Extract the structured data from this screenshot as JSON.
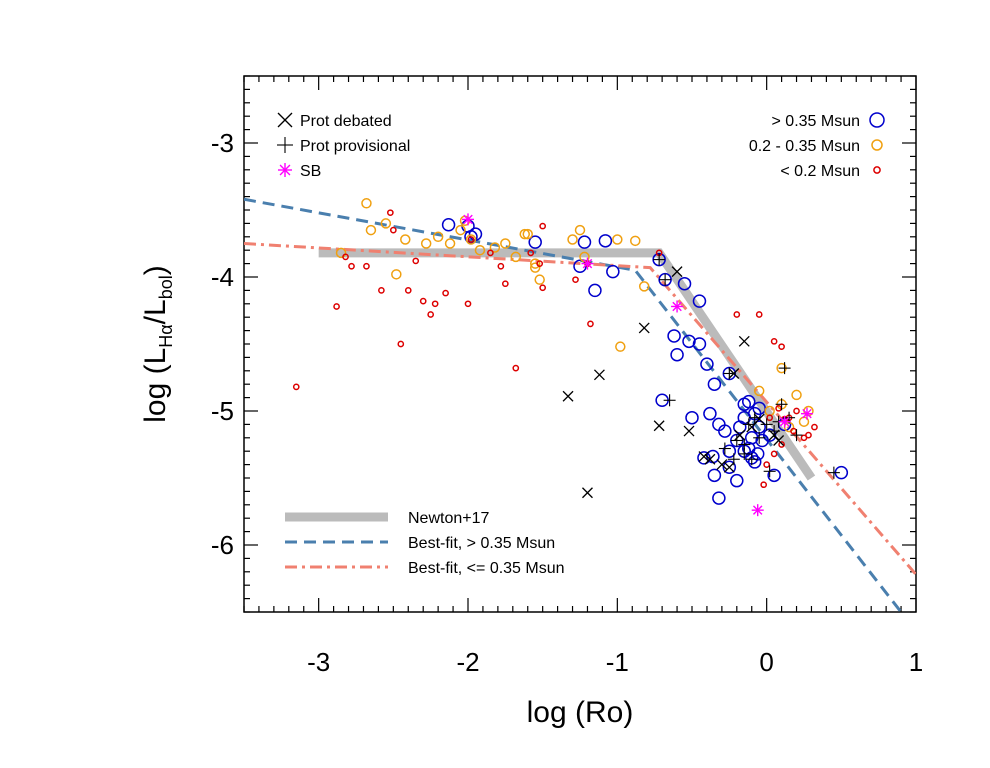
{
  "chart_data": {
    "type": "scatter",
    "title": "",
    "xlabel": "log (Ro)",
    "ylabel": {
      "prefix": "log (L",
      "sub1": "Hα",
      "mid": "/L",
      "sub2": "bol",
      "suffix": ")"
    },
    "xlim": [
      -3.5,
      1.0
    ],
    "ylim": [
      -6.5,
      -2.5
    ],
    "x_ticks": [
      "-3",
      "-2",
      "-1",
      "0",
      "1"
    ],
    "x_tick_values": [
      -3,
      -2,
      -1,
      0,
      1
    ],
    "y_ticks": [
      "-3",
      "-4",
      "-5",
      "-6"
    ],
    "y_tick_values": [
      -3,
      -4,
      -5,
      -6
    ],
    "grid": false,
    "colors": {
      "high": "#0000cc",
      "mid": "#f0a010",
      "low": "#dd0000",
      "sb": "#ff00ff",
      "newton": "#bbbbbb",
      "fit_high": "#4a7fae",
      "fit_low": "#f08070"
    },
    "legend_markers": {
      "placement": "top",
      "items": [
        {
          "label": "Prot debated",
          "symbol": "x"
        },
        {
          "label": "Prot provisional",
          "symbol": "+"
        },
        {
          "label": "SB",
          "symbol": "*"
        }
      ]
    },
    "legend_mass": {
      "placement": "top-right",
      "items": [
        {
          "label": "> 0.35 Msun",
          "group": "high"
        },
        {
          "label": "0.2 - 0.35 Msun",
          "group": "mid"
        },
        {
          "label": "< 0.2 Msun",
          "group": "low"
        }
      ]
    },
    "legend_lines": {
      "placement": "bottom-left",
      "items": [
        {
          "label": "Newton+17",
          "line": "newton"
        },
        {
          "label": "Best-fit, > 0.35 Msun",
          "line": "fit_high"
        },
        {
          "label": "Best-fit, <= 0.35 Msun",
          "line": "fit_low"
        }
      ]
    },
    "lines": {
      "newton": [
        [
          -3.0,
          -3.82
        ],
        [
          -0.72,
          -3.82
        ],
        [
          0.3,
          -5.5
        ]
      ],
      "fit_high": [
        [
          -3.5,
          -3.42
        ],
        [
          -0.88,
          -3.95
        ],
        [
          0.9,
          -6.5
        ]
      ],
      "fit_low": [
        [
          -3.5,
          -3.75
        ],
        [
          -0.78,
          -3.93
        ],
        [
          1.0,
          -6.22
        ]
      ]
    },
    "series": [
      {
        "group": "high",
        "points": [
          [
            -2.0,
            -3.62
          ],
          [
            -1.98,
            -3.7
          ],
          [
            -2.13,
            -3.61
          ],
          [
            -1.95,
            -3.68
          ],
          [
            -1.55,
            -3.74
          ],
          [
            -1.22,
            -3.74
          ],
          [
            -1.08,
            -3.73
          ],
          [
            -1.25,
            -3.92
          ],
          [
            -1.03,
            -3.96
          ],
          [
            -1.15,
            -4.1
          ],
          [
            -0.72,
            -3.87
          ],
          [
            -0.68,
            -4.02
          ],
          [
            -0.55,
            -4.05
          ],
          [
            -0.45,
            -4.18
          ],
          [
            -0.52,
            -4.48
          ],
          [
            -0.62,
            -4.44
          ],
          [
            -0.45,
            -4.5
          ],
          [
            -0.4,
            -4.65
          ],
          [
            -0.25,
            -4.72
          ],
          [
            -0.35,
            -4.8
          ],
          [
            -0.15,
            -4.95
          ],
          [
            -0.7,
            -4.92
          ],
          [
            -0.5,
            -5.05
          ],
          [
            -0.38,
            -5.02
          ],
          [
            -0.32,
            -5.1
          ],
          [
            -0.15,
            -5.05
          ],
          [
            -0.08,
            -5.02
          ],
          [
            -0.05,
            -5.12
          ],
          [
            -0.2,
            -5.22
          ],
          [
            -0.12,
            -5.28
          ],
          [
            -0.06,
            -5.32
          ],
          [
            -0.08,
            -5.38
          ],
          [
            -0.25,
            -5.42
          ],
          [
            -0.35,
            -5.48
          ],
          [
            -0.2,
            -5.52
          ],
          [
            -0.32,
            -5.65
          ],
          [
            0.05,
            -5.48
          ],
          [
            0.5,
            -5.46
          ],
          [
            0.02,
            -5.18
          ],
          [
            -0.18,
            -5.12
          ],
          [
            -0.1,
            -5.2
          ],
          [
            -0.03,
            -5.22
          ],
          [
            -0.15,
            -5.3
          ],
          [
            -0.25,
            -5.3
          ],
          [
            -0.05,
            -4.98
          ],
          [
            -0.6,
            -4.58
          ],
          [
            -0.36,
            -5.34
          ],
          [
            0.12,
            -5.1
          ],
          [
            -0.1,
            -5.35
          ],
          [
            -0.28,
            -5.15
          ],
          [
            -0.12,
            -4.93
          ],
          [
            -0.42,
            -5.35
          ]
        ]
      },
      {
        "group": "mid",
        "points": [
          [
            -2.68,
            -3.45
          ],
          [
            -2.65,
            -3.65
          ],
          [
            -2.55,
            -3.6
          ],
          [
            -2.42,
            -3.72
          ],
          [
            -2.28,
            -3.75
          ],
          [
            -2.2,
            -3.7
          ],
          [
            -2.12,
            -3.75
          ],
          [
            -2.05,
            -3.65
          ],
          [
            -2.02,
            -3.58
          ],
          [
            -1.98,
            -3.72
          ],
          [
            -1.82,
            -3.78
          ],
          [
            -1.75,
            -3.75
          ],
          [
            -1.68,
            -3.85
          ],
          [
            -1.62,
            -3.68
          ],
          [
            -1.6,
            -3.68
          ],
          [
            -1.55,
            -3.9
          ],
          [
            -1.52,
            -4.02
          ],
          [
            -1.3,
            -3.72
          ],
          [
            -1.25,
            -3.65
          ],
          [
            -1.22,
            -3.85
          ],
          [
            -1.0,
            -3.72
          ],
          [
            -0.88,
            -3.73
          ],
          [
            -0.98,
            -4.52
          ],
          [
            -0.82,
            -4.07
          ],
          [
            -2.85,
            -3.82
          ],
          [
            -2.48,
            -3.98
          ],
          [
            -1.92,
            -3.8
          ],
          [
            -1.55,
            -3.93
          ],
          [
            0.1,
            -4.68
          ],
          [
            0.2,
            -4.88
          ],
          [
            0.28,
            -5.0
          ],
          [
            0.25,
            -5.08
          ],
          [
            0.1,
            -4.95
          ],
          [
            0.15,
            -5.12
          ],
          [
            -0.05,
            -4.85
          ],
          [
            0.02,
            -5.0
          ]
        ]
      },
      {
        "group": "low",
        "points": [
          [
            -3.15,
            -4.82
          ],
          [
            -2.88,
            -4.22
          ],
          [
            -2.82,
            -3.85
          ],
          [
            -2.78,
            -3.92
          ],
          [
            -2.68,
            -3.92
          ],
          [
            -2.58,
            -4.1
          ],
          [
            -2.5,
            -3.65
          ],
          [
            -2.45,
            -4.5
          ],
          [
            -2.4,
            -4.1
          ],
          [
            -2.35,
            -3.88
          ],
          [
            -2.3,
            -4.18
          ],
          [
            -2.25,
            -4.28
          ],
          [
            -2.22,
            -4.2
          ],
          [
            -2.15,
            -4.12
          ],
          [
            -1.98,
            -3.72
          ],
          [
            -1.85,
            -3.82
          ],
          [
            -1.78,
            -3.92
          ],
          [
            -1.75,
            -4.05
          ],
          [
            -1.68,
            -4.68
          ],
          [
            -1.58,
            -3.82
          ],
          [
            -1.52,
            -3.9
          ],
          [
            -1.5,
            -4.08
          ],
          [
            -1.5,
            -3.62
          ],
          [
            -1.28,
            -4.02
          ],
          [
            -1.2,
            -3.9
          ],
          [
            -1.18,
            -4.35
          ],
          [
            -0.72,
            -3.82
          ],
          [
            -2.52,
            -3.52
          ],
          [
            -2.0,
            -4.2
          ],
          [
            -0.05,
            -4.28
          ],
          [
            0.05,
            -4.48
          ],
          [
            0.08,
            -4.98
          ],
          [
            0.15,
            -5.05
          ],
          [
            0.2,
            -5.0
          ],
          [
            0.28,
            -5.18
          ],
          [
            0.32,
            -5.12
          ],
          [
            0.1,
            -5.25
          ],
          [
            0.05,
            -5.32
          ],
          [
            0.0,
            -5.4
          ],
          [
            -0.02,
            -5.55
          ],
          [
            0.1,
            -4.52
          ],
          [
            -0.2,
            -4.28
          ],
          [
            0.18,
            -5.15
          ],
          [
            0.25,
            -5.2
          ],
          [
            0.12,
            -5.06
          ],
          [
            0.02,
            -5.05
          ]
        ]
      }
    ],
    "markers_debated": [
      [
        -0.6,
        -3.96
      ],
      [
        -0.82,
        -4.38
      ],
      [
        -1.12,
        -4.73
      ],
      [
        -1.33,
        -4.89
      ],
      [
        -1.2,
        -5.61
      ],
      [
        -0.72,
        -5.11
      ],
      [
        -0.52,
        -5.15
      ],
      [
        -0.42,
        -5.34
      ],
      [
        -0.38,
        -5.36
      ],
      [
        -0.3,
        -5.4
      ],
      [
        -0.25,
        -5.42
      ],
      [
        -0.18,
        -5.18
      ],
      [
        -0.15,
        -4.48
      ],
      [
        -0.22,
        -4.72
      ],
      [
        -0.05,
        -5.06
      ],
      [
        0.05,
        -5.18
      ],
      [
        0.08,
        -5.22
      ],
      [
        -0.1,
        -5.12
      ]
    ],
    "markers_provisional": [
      [
        -0.72,
        -3.87
      ],
      [
        -0.68,
        -4.02
      ],
      [
        -0.65,
        -4.92
      ],
      [
        -0.25,
        -4.72
      ],
      [
        -0.2,
        -5.22
      ],
      [
        -0.12,
        -5.1
      ],
      [
        -0.08,
        -5.05
      ],
      [
        -0.05,
        -5.2
      ],
      [
        0.0,
        -5.1
      ],
      [
        0.05,
        -5.15
      ],
      [
        0.1,
        -4.95
      ],
      [
        0.15,
        -5.05
      ],
      [
        0.2,
        -5.18
      ],
      [
        0.12,
        -4.68
      ],
      [
        -0.15,
        -5.32
      ],
      [
        -0.1,
        -5.36
      ],
      [
        -0.22,
        -5.36
      ],
      [
        0.45,
        -5.46
      ],
      [
        0.02,
        -5.45
      ],
      [
        -0.28,
        -5.28
      ],
      [
        0.08,
        -5.08
      ],
      [
        -0.15,
        -5.25
      ]
    ],
    "markers_sb": [
      [
        -2.0,
        -3.57
      ],
      [
        -1.2,
        -3.9
      ],
      [
        -0.6,
        -4.22
      ],
      [
        -0.06,
        -5.74
      ],
      [
        0.27,
        -5.02
      ],
      [
        0.12,
        -5.08
      ]
    ]
  }
}
